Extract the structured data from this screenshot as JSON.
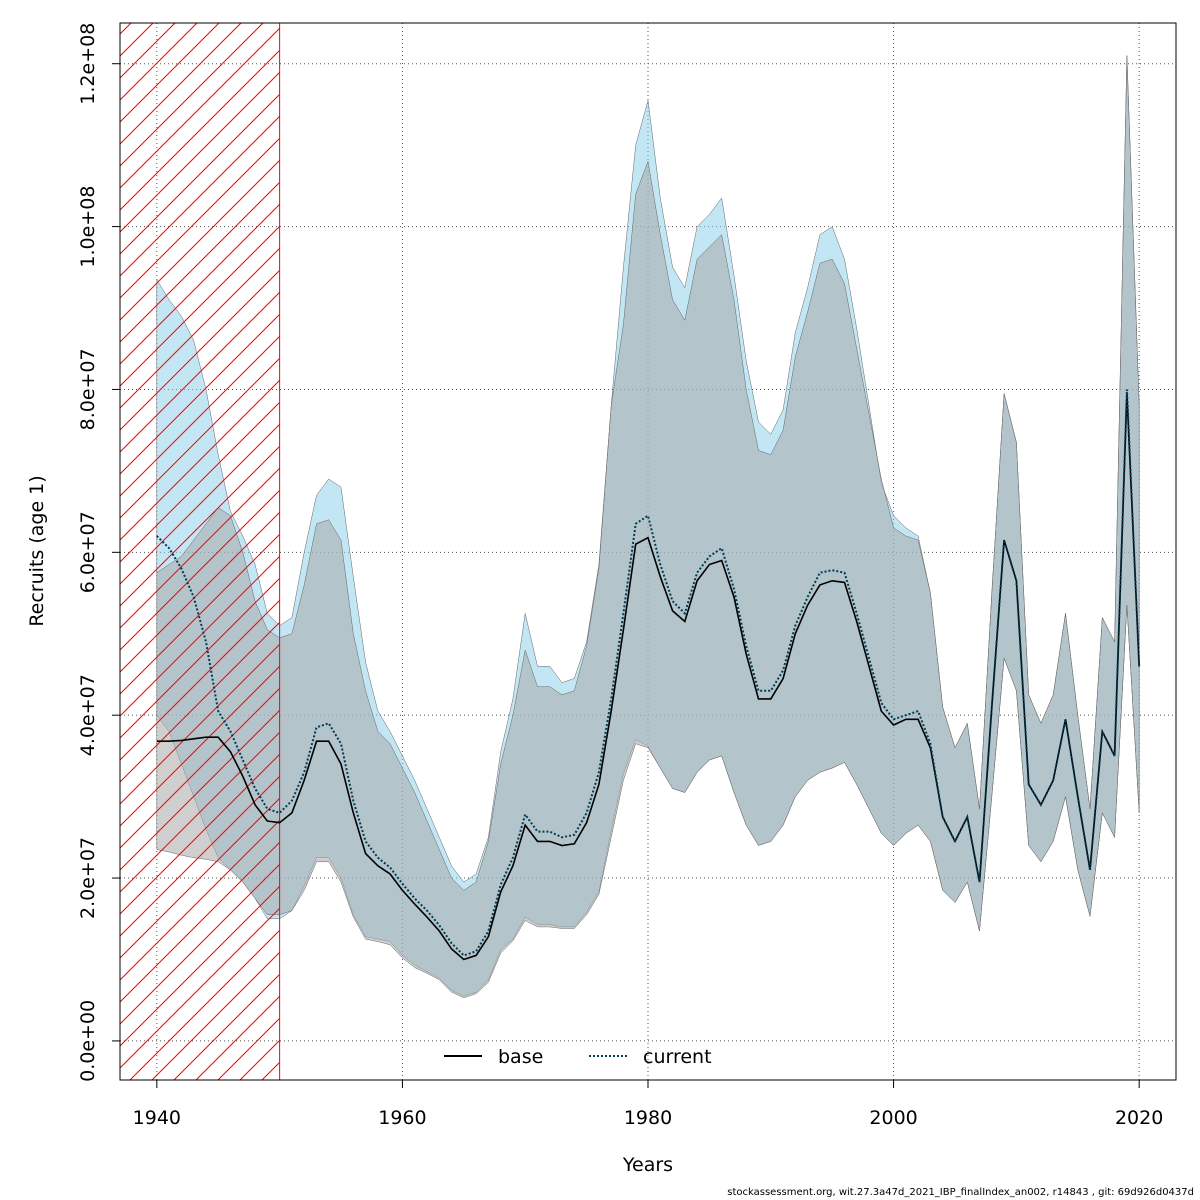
{
  "chart_data": {
    "type": "line",
    "xlabel": "Years",
    "ylabel": "Recruits (age 1)",
    "xlim": [
      1937,
      2023
    ],
    "ylim": [
      -4800000,
      125000000
    ],
    "x_ticks": [
      1940,
      1960,
      1980,
      2000,
      2020
    ],
    "x_tick_labels": [
      "1940",
      "1960",
      "1980",
      "2000",
      "2020"
    ],
    "y_ticks": [
      0,
      20000000,
      40000000,
      60000000,
      80000000,
      100000000,
      120000000
    ],
    "y_tick_labels": [
      "0.0e+00",
      "2.0e+07",
      "4.0e+07",
      "6.0e+07",
      "8.0e+07",
      "1.0e+08",
      "1.2e+08"
    ],
    "grid": true,
    "legend_position": "bottom-center",
    "shaded_region": {
      "x_from": 1937,
      "x_to": 1950,
      "style": "hatched",
      "color": "#ff0000"
    },
    "x": [
      1940,
      1941,
      1942,
      1943,
      1944,
      1945,
      1946,
      1947,
      1948,
      1949,
      1950,
      1951,
      1952,
      1953,
      1954,
      1955,
      1956,
      1957,
      1958,
      1959,
      1960,
      1961,
      1962,
      1963,
      1964,
      1965,
      1966,
      1967,
      1968,
      1969,
      1970,
      1971,
      1972,
      1973,
      1974,
      1975,
      1976,
      1977,
      1978,
      1979,
      1980,
      1981,
      1982,
      1983,
      1984,
      1985,
      1986,
      1987,
      1988,
      1989,
      1990,
      1991,
      1992,
      1993,
      1994,
      1995,
      1996,
      1997,
      1998,
      1999,
      2000,
      2001,
      2002,
      2003,
      2004,
      2005,
      2006,
      2007,
      2008,
      2009,
      2010,
      2011,
      2012,
      2013,
      2014,
      2015,
      2016,
      2017,
      2018,
      2019,
      2020
    ],
    "series": [
      {
        "name": "base",
        "color": "#000000",
        "band_color": "#a8a8a8",
        "line_style": "solid",
        "values": [
          36.8,
          36.8,
          36.9,
          37.1,
          37.3,
          37.3,
          35.5,
          32.5,
          29.0,
          27.0,
          26.8,
          28.0,
          32.0,
          36.8,
          36.8,
          34.0,
          28.0,
          23.0,
          21.5,
          20.5,
          18.5,
          16.8,
          15.2,
          13.5,
          11.3,
          10.0,
          10.5,
          12.8,
          18.3,
          21.5,
          26.5,
          24.5,
          24.5,
          24.0,
          24.2,
          26.8,
          31.5,
          40.5,
          50.5,
          61.0,
          61.8,
          57.0,
          52.8,
          51.5,
          56.5,
          58.5,
          59.0,
          54.5,
          47.5,
          42.0,
          42.0,
          44.5,
          50.0,
          53.5,
          56.0,
          56.5,
          56.3,
          51.5,
          46.0,
          40.5,
          38.8,
          39.5,
          39.5,
          36.0,
          27.5,
          24.5,
          27.5,
          19.5,
          41.0,
          61.5,
          56.5,
          31.5,
          29.0,
          32.0,
          39.5,
          30.0,
          21.0,
          38.0,
          35.0,
          79.5,
          46.0
        ],
        "lower": [
          23.5,
          23.2,
          22.8,
          22.5,
          22.3,
          22.0,
          21.0,
          19.5,
          17.5,
          15.5,
          15.5,
          16.0,
          18.5,
          22.0,
          22.0,
          19.5,
          15.2,
          12.5,
          12.2,
          11.8,
          10.2,
          9.0,
          8.3,
          7.5,
          6.0,
          5.3,
          5.8,
          7.2,
          10.8,
          12.3,
          14.8,
          14.0,
          14.0,
          13.8,
          13.8,
          15.5,
          18.0,
          25.0,
          32.0,
          36.5,
          36.0,
          33.5,
          31.0,
          30.5,
          33.0,
          34.5,
          35.0,
          30.5,
          26.5,
          24.0,
          24.5,
          26.5,
          30.0,
          32.0,
          33.0,
          33.5,
          34.2,
          31.5,
          28.5,
          25.5,
          24.0,
          25.5,
          26.5,
          24.5,
          18.5,
          17.0,
          19.5,
          13.5,
          30.0,
          47.0,
          43.0,
          24.0,
          22.0,
          24.5,
          30.0,
          21.0,
          15.3,
          28.0,
          25.0,
          53.5,
          28.0
        ],
        "upper": [
          57.5,
          58.5,
          59.5,
          61.5,
          63.5,
          65.5,
          64.5,
          60.0,
          54.0,
          50.5,
          49.5,
          50.0,
          56.0,
          63.5,
          64.0,
          61.5,
          50.0,
          43.0,
          38.0,
          36.5,
          33.5,
          30.5,
          27.0,
          23.5,
          20.0,
          18.5,
          19.5,
          24.5,
          34.0,
          40.0,
          48.0,
          43.5,
          43.5,
          42.5,
          43.0,
          48.5,
          58.0,
          78.0,
          88.0,
          104.0,
          108.0,
          99.0,
          91.0,
          88.5,
          96.0,
          97.5,
          99.0,
          91.0,
          80.0,
          72.5,
          72.0,
          75.0,
          84.0,
          89.5,
          95.5,
          96.0,
          93.0,
          85.0,
          77.0,
          69.0,
          63.0,
          62.0,
          61.5,
          55.0,
          41.0,
          36.0,
          39.0,
          28.5,
          55.0,
          79.5,
          73.5,
          42.5,
          39.0,
          42.5,
          52.5,
          40.0,
          28.5,
          52.0,
          49.0,
          121.0,
          78.0
        ]
      },
      {
        "name": "current",
        "color": "#003b55",
        "band_color": "#87ceeb",
        "line_style": "dotted",
        "values": [
          62.0,
          60.5,
          58.0,
          54.5,
          49.0,
          40.5,
          38.0,
          34.5,
          31.0,
          28.5,
          28.0,
          29.5,
          33.0,
          38.5,
          39.0,
          36.5,
          29.5,
          24.5,
          22.5,
          21.3,
          19.3,
          17.5,
          16.0,
          14.2,
          12.0,
          10.5,
          11.0,
          13.5,
          19.2,
          22.5,
          27.8,
          25.7,
          25.7,
          25.0,
          25.3,
          28.0,
          33.0,
          42.0,
          52.5,
          63.5,
          64.5,
          58.5,
          54.0,
          52.5,
          57.5,
          59.5,
          60.5,
          55.5,
          48.5,
          43.0,
          43.0,
          45.5,
          51.0,
          54.5,
          57.5,
          57.8,
          57.5,
          52.5,
          47.0,
          41.5,
          39.5,
          40.0,
          40.5,
          36.5,
          27.5,
          24.5,
          27.5,
          19.5,
          41.0,
          61.5,
          56.5,
          31.5,
          29.0,
          32.0,
          39.5,
          30.0,
          21.0,
          38.0,
          35.0,
          80.0,
          46.0
        ],
        "lower": [
          40.0,
          38.0,
          34.0,
          30.0,
          26.0,
          22.5,
          21.0,
          19.5,
          17.5,
          15.0,
          15.0,
          16.0,
          19.0,
          22.5,
          22.5,
          20.0,
          15.5,
          12.8,
          12.5,
          12.2,
          10.5,
          9.3,
          8.5,
          7.7,
          6.2,
          5.5,
          6.0,
          7.5,
          11.2,
          12.5,
          15.2,
          14.3,
          14.3,
          14.0,
          14.0,
          15.8,
          18.3,
          25.8,
          32.8,
          37.0,
          36.2,
          33.5,
          31.0,
          30.5,
          33.0,
          34.5,
          35.0,
          30.5,
          26.5,
          24.0,
          24.5,
          26.5,
          30.0,
          32.0,
          33.0,
          33.5,
          34.2,
          31.5,
          28.5,
          25.5,
          24.0,
          25.5,
          26.5,
          24.5,
          18.5,
          17.0,
          19.5,
          13.5,
          30.0,
          47.0,
          43.0,
          24.0,
          22.0,
          24.5,
          30.0,
          21.0,
          15.3,
          28.0,
          25.0,
          53.5,
          28.0
        ],
        "upper": [
          93.5,
          91.0,
          89.0,
          86.0,
          80.0,
          72.0,
          65.0,
          62.0,
          58.5,
          52.5,
          51.0,
          52.0,
          60.0,
          67.0,
          69.0,
          68.0,
          57.0,
          46.5,
          40.5,
          38.0,
          35.0,
          32.0,
          28.5,
          25.0,
          21.5,
          19.5,
          20.5,
          25.0,
          35.5,
          42.0,
          52.5,
          46.0,
          46.0,
          44.0,
          44.5,
          49.0,
          58.5,
          78.0,
          95.0,
          110.0,
          115.5,
          103.5,
          95.0,
          92.5,
          100.0,
          101.5,
          103.5,
          94.0,
          83.5,
          76.0,
          74.5,
          77.5,
          87.0,
          92.5,
          99.0,
          100.0,
          96.0,
          87.5,
          78.0,
          68.5,
          64.5,
          63.0,
          62.0,
          55.0,
          41.0,
          36.0,
          39.0,
          28.5,
          55.0,
          79.5,
          73.5,
          42.5,
          39.0,
          42.5,
          52.5,
          40.0,
          28.5,
          52.0,
          49.0,
          121.0,
          78.0
        ]
      }
    ],
    "value_unit_multiplier": 1000000
  },
  "footer_text": "stockassessment.org, wit.27.3a47d_2021_IBP_finalIndex_an002, r14843 , git: 69d926d0437d"
}
